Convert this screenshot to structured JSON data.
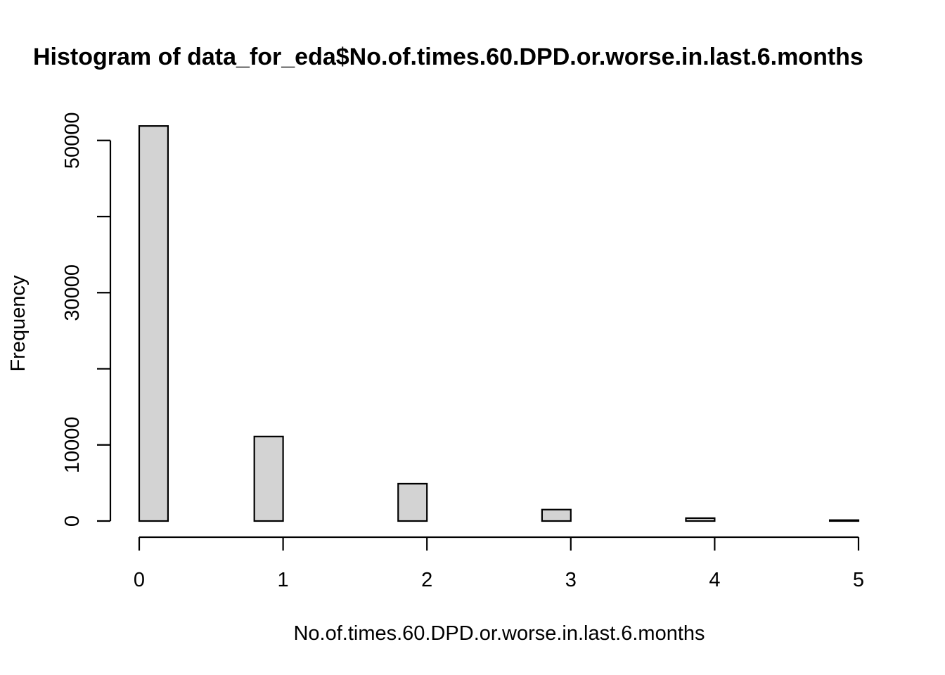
{
  "chart_data": {
    "type": "bar",
    "title": "Histogram of data_for_eda$No.of.times.60.DPD.or.worse.in.last.6.months",
    "xlabel": "No.of.times.60.DPD.or.worse.in.last.6.months",
    "ylabel": "Frequency",
    "bin_width": 0.2,
    "bins": [
      {
        "start": 0.0,
        "end": 0.2,
        "count": 51900
      },
      {
        "start": 0.2,
        "end": 0.4,
        "count": 0
      },
      {
        "start": 0.4,
        "end": 0.6,
        "count": 0
      },
      {
        "start": 0.6,
        "end": 0.8,
        "count": 0
      },
      {
        "start": 0.8,
        "end": 1.0,
        "count": 11100
      },
      {
        "start": 1.0,
        "end": 1.2,
        "count": 0
      },
      {
        "start": 1.2,
        "end": 1.4,
        "count": 0
      },
      {
        "start": 1.4,
        "end": 1.6,
        "count": 0
      },
      {
        "start": 1.6,
        "end": 1.8,
        "count": 0
      },
      {
        "start": 1.8,
        "end": 2.0,
        "count": 4900
      },
      {
        "start": 2.0,
        "end": 2.2,
        "count": 0
      },
      {
        "start": 2.2,
        "end": 2.4,
        "count": 0
      },
      {
        "start": 2.4,
        "end": 2.6,
        "count": 0
      },
      {
        "start": 2.6,
        "end": 2.8,
        "count": 0
      },
      {
        "start": 2.8,
        "end": 3.0,
        "count": 1500
      },
      {
        "start": 3.0,
        "end": 3.2,
        "count": 0
      },
      {
        "start": 3.2,
        "end": 3.4,
        "count": 0
      },
      {
        "start": 3.4,
        "end": 3.6,
        "count": 0
      },
      {
        "start": 3.6,
        "end": 3.8,
        "count": 0
      },
      {
        "start": 3.8,
        "end": 4.0,
        "count": 380
      },
      {
        "start": 4.0,
        "end": 4.2,
        "count": 0
      },
      {
        "start": 4.2,
        "end": 4.4,
        "count": 0
      },
      {
        "start": 4.4,
        "end": 4.6,
        "count": 0
      },
      {
        "start": 4.6,
        "end": 4.8,
        "count": 0
      },
      {
        "start": 4.8,
        "end": 5.0,
        "count": 120
      }
    ],
    "xlim": [
      0,
      5
    ],
    "ylim": [
      0,
      52000
    ],
    "xticks": [
      0,
      1,
      2,
      3,
      4,
      5
    ],
    "yticks": [
      0,
      10000,
      20000,
      30000,
      40000,
      50000
    ],
    "ytick_labels": [
      "0",
      "10000",
      "",
      "30000",
      "",
      "50000"
    ],
    "grid": false
  }
}
